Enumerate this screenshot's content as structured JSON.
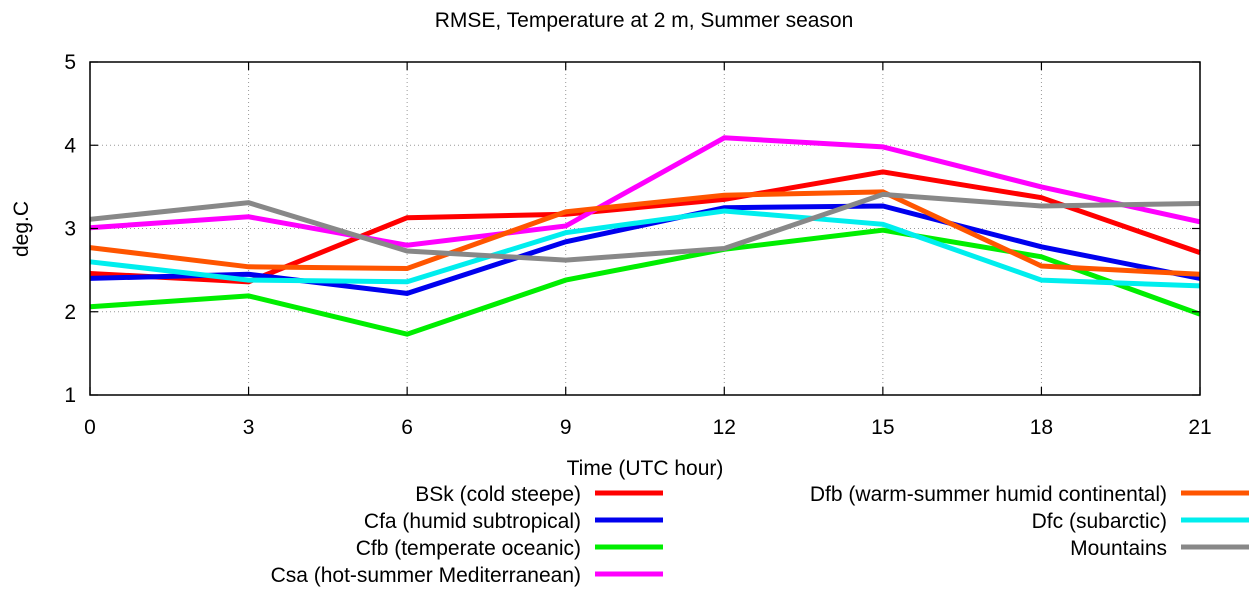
{
  "chart_data": {
    "type": "line",
    "title": "RMSE, Temperature at 2 m, Summer season",
    "xlabel": "Time (UTC hour)",
    "ylabel": "deg.C",
    "x": [
      0,
      3,
      6,
      9,
      12,
      15,
      18,
      21
    ],
    "xlim": [
      0,
      21
    ],
    "ylim": [
      1,
      5
    ],
    "yticks": [
      1,
      2,
      3,
      4,
      5
    ],
    "grid": true,
    "legend_position": "bottom",
    "series": [
      {
        "name": "BSk (cold steepe)",
        "color": "#ff0000",
        "values": [
          2.46,
          2.36,
          3.13,
          3.17,
          3.35,
          3.68,
          3.37,
          2.71
        ]
      },
      {
        "name": "Cfa (humid subtropical)",
        "color": "#0000ee",
        "values": [
          2.4,
          2.45,
          2.22,
          2.84,
          3.25,
          3.27,
          2.78,
          2.4
        ]
      },
      {
        "name": "Cfb (temperate oceanic)",
        "color": "#00ee00",
        "values": [
          2.06,
          2.19,
          1.73,
          2.38,
          2.75,
          2.98,
          2.66,
          1.97
        ]
      },
      {
        "name": "Csa (hot-summer Mediterranean)",
        "color": "#ff00ff",
        "values": [
          3.01,
          3.14,
          2.8,
          3.03,
          4.09,
          3.98,
          3.5,
          3.08
        ]
      },
      {
        "name": "Dfb (warm-summer humid continental)",
        "color": "#ff5500",
        "values": [
          2.77,
          2.54,
          2.52,
          3.2,
          3.4,
          3.44,
          2.55,
          2.45
        ]
      },
      {
        "name": "Dfc (subarctic)",
        "color": "#00eeee",
        "values": [
          2.6,
          2.38,
          2.36,
          2.95,
          3.21,
          3.05,
          2.38,
          2.31
        ]
      },
      {
        "name": "Mountains",
        "color": "#888888",
        "values": [
          3.11,
          3.31,
          2.73,
          2.62,
          2.76,
          3.41,
          3.27,
          3.3
        ]
      }
    ]
  }
}
